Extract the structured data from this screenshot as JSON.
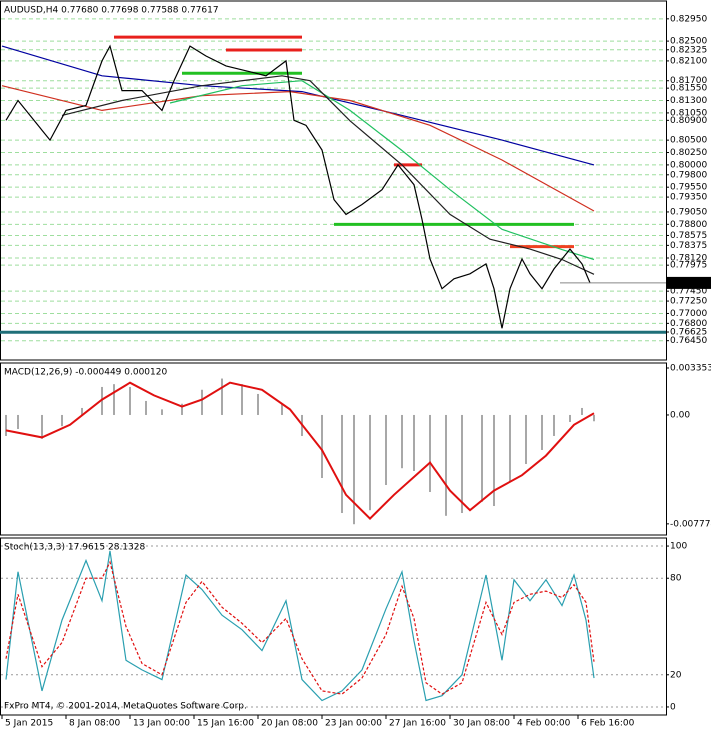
{
  "chart_data": [
    {
      "type": "line",
      "title": "AUDUSD,H4 0.77680 0.77698 0.77588 0.77617",
      "xlim": [
        -0.5,
        166
      ],
      "ylim": [
        0.7606,
        0.8331
      ],
      "yticks": [
        {
          "value": 0.8295,
          "label": "0.82950"
        },
        {
          "value": 0.825,
          "label": "0.82500"
        },
        {
          "value": 0.82325,
          "label": "0.82325"
        },
        {
          "value": 0.821,
          "label": "0.82100"
        },
        {
          "value": 0.817,
          "label": "0.81700"
        },
        {
          "value": 0.8155,
          "label": "0.81550"
        },
        {
          "value": 0.813,
          "label": "0.81300"
        },
        {
          "value": 0.8105,
          "label": "0.81050"
        },
        {
          "value": 0.809,
          "label": "0.80900"
        },
        {
          "value": 0.805,
          "label": "0.80500"
        },
        {
          "value": 0.8025,
          "label": "0.80250"
        },
        {
          "value": 0.8,
          "label": "0.80000"
        },
        {
          "value": 0.798,
          "label": "0.79800"
        },
        {
          "value": 0.7955,
          "label": "0.79550"
        },
        {
          "value": 0.7935,
          "label": "0.79350"
        },
        {
          "value": 0.7905,
          "label": "0.79050"
        },
        {
          "value": 0.788,
          "label": "0.78800"
        },
        {
          "value": 0.78575,
          "label": "0.78575"
        },
        {
          "value": 0.78375,
          "label": "0.78375"
        },
        {
          "value": 0.7812,
          "label": "0.78120"
        },
        {
          "value": 0.77975,
          "label": "0.77975"
        },
        {
          "value": 0.7745,
          "label": "0.77450"
        },
        {
          "value": 0.7725,
          "label": "0.77250"
        },
        {
          "value": 0.77,
          "label": "0.77000"
        },
        {
          "value": 0.768,
          "label": "0.76800"
        },
        {
          "value": 0.76625,
          "label": "0.76625"
        },
        {
          "value": 0.7645,
          "label": "0.76450"
        }
      ],
      "grid": true,
      "current_price": {
        "value": 0.77617,
        "label": "0.77617"
      },
      "levels": [
        {
          "value": 0.8258,
          "color": "#e8201c",
          "from": 28,
          "to": 75
        },
        {
          "value": 0.8232,
          "color": "#e8201c",
          "from": 56,
          "to": 75
        },
        {
          "value": 0.8185,
          "color": "#22c022",
          "from": 45,
          "to": 75
        },
        {
          "value": 0.8,
          "color": "#e8201c",
          "from": 98,
          "to": 105
        },
        {
          "value": 0.7835,
          "color": "#f04020",
          "from": 127,
          "to": 143
        },
        {
          "value": 0.788,
          "color": "#22c022",
          "from": 83,
          "to": 143
        },
        {
          "value": 0.7662,
          "color": "#1f6f78",
          "from": -0.5,
          "to": 166
        }
      ],
      "series": [
        {
          "color": "#0000a0",
          "x": [
            0,
            25,
            50,
            75,
            100,
            125,
            148
          ],
          "values": [
            0.824,
            0.818,
            0.816,
            0.8148,
            0.81,
            0.805,
            0.8
          ]
        },
        {
          "color": "#d03020",
          "x": [
            0,
            25,
            50,
            72,
            87,
            107,
            125,
            148
          ],
          "values": [
            0.816,
            0.811,
            0.814,
            0.8148,
            0.813,
            0.808,
            0.801,
            0.7907
          ]
        },
        {
          "color": "#20c060",
          "x": [
            42,
            60,
            75,
            87,
            100,
            112,
            125,
            140,
            148
          ],
          "values": [
            0.8125,
            0.816,
            0.817,
            0.811,
            0.8029,
            0.795,
            0.787,
            0.7829,
            0.7809
          ]
        },
        {
          "color": "#202020",
          "x": [
            15,
            30,
            50,
            70,
            77,
            87,
            100,
            112,
            122,
            132,
            140,
            148
          ],
          "values": [
            0.81,
            0.813,
            0.816,
            0.818,
            0.817,
            0.8089,
            0.8,
            0.79,
            0.785,
            0.783,
            0.7809,
            0.7779
          ]
        },
        {
          "color": "#000000",
          "x": [
            1,
            4,
            10,
            12,
            16,
            21,
            25,
            27,
            30,
            35,
            40,
            43,
            47,
            51,
            56,
            61,
            66,
            71,
            73,
            76,
            80,
            83,
            86,
            90,
            95,
            99,
            103,
            105,
            107,
            110,
            113,
            117,
            121,
            123,
            125,
            127,
            130,
            132,
            135,
            138,
            142,
            145,
            147
          ],
          "values": [
            0.809,
            0.813,
            0.807,
            0.805,
            0.811,
            0.812,
            0.821,
            0.824,
            0.815,
            0.815,
            0.811,
            0.817,
            0.824,
            0.822,
            0.82,
            0.819,
            0.818,
            0.821,
            0.809,
            0.808,
            0.803,
            0.793,
            0.79,
            0.792,
            0.795,
            0.8,
            0.796,
            0.789,
            0.781,
            0.775,
            0.777,
            0.778,
            0.78,
            0.775,
            0.767,
            0.775,
            0.781,
            0.778,
            0.775,
            0.779,
            0.783,
            0.78,
            0.77617
          ]
        }
      ]
    },
    {
      "type": "line",
      "title": "MACD(12,26,9) -0.000449 0.000120",
      "xlim": [
        -0.5,
        166
      ],
      "ylim": [
        -0.00857,
        0.00371
      ],
      "yticks": [
        0.003353,
        {
          "value": 0,
          "label": "0.00"
        },
        -0.007774
      ],
      "grid": false,
      "series": [
        {
          "color": "#a8a8a8",
          "style": "histogram",
          "x": [
            1,
            4,
            10,
            15,
            20,
            25,
            28,
            32,
            36,
            40,
            45,
            50,
            55,
            60,
            64,
            70,
            75,
            80,
            85,
            88,
            92,
            96,
            100,
            103,
            107,
            111,
            115,
            120,
            123,
            127,
            131,
            135,
            138,
            142,
            145,
            148
          ],
          "values": [
            -0.0015,
            -0.001,
            -0.0017,
            -0.0008,
            0.0005,
            0.002,
            0.0022,
            0.002,
            0.001,
            0.0004,
            0.0008,
            0.0018,
            0.0026,
            0.0022,
            0.0015,
            0.0008,
            -0.0015,
            -0.0045,
            -0.007,
            -0.0078,
            -0.0068,
            -0.005,
            -0.0038,
            -0.004,
            -0.0055,
            -0.0072,
            -0.007,
            -0.0062,
            -0.0065,
            -0.0048,
            -0.0035,
            -0.0025,
            -0.0015,
            -0.0005,
            0.0005,
            -0.000449
          ]
        },
        {
          "color": "#e01010",
          "x": [
            1,
            10,
            17,
            25,
            32,
            38,
            45,
            50,
            57,
            65,
            72,
            80,
            86,
            92,
            98,
            107,
            112,
            117,
            123,
            130,
            136,
            143,
            148
          ],
          "values": [
            -0.0011,
            -0.0016,
            -0.0007,
            0.0011,
            0.0023,
            0.0014,
            0.0006,
            0.0011,
            0.0023,
            0.0018,
            0.0004,
            -0.0025,
            -0.0057,
            -0.0074,
            -0.0057,
            -0.0034,
            -0.0054,
            -0.0068,
            -0.0054,
            -0.0043,
            -0.0029,
            -0.0007,
            0.00012
          ]
        }
      ]
    },
    {
      "type": "line",
      "title": "Stoch(13,3,3) 17.9615 28.1328",
      "annotation": "FxPro MT4, © 2001-2014, MetaQuotes Software Corp.",
      "xlim": [
        -0.5,
        166
      ],
      "ylim": [
        -5,
        105
      ],
      "yticks": [
        100,
        80,
        20,
        0
      ],
      "xticks": [
        {
          "value": 0,
          "label": "5 Jan 2015"
        },
        {
          "value": 16,
          "label": "8 Jan 08:00"
        },
        {
          "value": 32,
          "label": "13 Jan 00:00"
        },
        {
          "value": 48,
          "label": "15 Jan 16:00"
        },
        {
          "value": 64,
          "label": "20 Jan 08:00"
        },
        {
          "value": 80,
          "label": "23 Jan 00:00"
        },
        {
          "value": 96,
          "label": "27 Jan 16:00"
        },
        {
          "value": 112,
          "label": "30 Jan 08:00"
        },
        {
          "value": 128,
          "label": "4 Feb 00:00"
        },
        {
          "value": 144,
          "label": "6 Feb 16:00"
        }
      ],
      "grid": true,
      "series": [
        {
          "color": "#2a9fb0",
          "x": [
            1,
            4,
            10,
            15,
            21,
            25,
            27,
            31,
            35,
            40,
            46,
            50,
            55,
            60,
            65,
            71,
            75,
            80,
            85,
            90,
            96,
            100,
            103,
            106,
            110,
            115,
            121,
            125,
            128,
            132,
            136,
            140,
            143,
            146,
            148
          ],
          "values": [
            17,
            84,
            10,
            54,
            91,
            66,
            97,
            29,
            23,
            17,
            82,
            73,
            57,
            48,
            35,
            66,
            17,
            4,
            10,
            23,
            61,
            84,
            41,
            4,
            7,
            20,
            82,
            29,
            79,
            66,
            79,
            63,
            82,
            54,
            17.9615
          ]
        },
        {
          "color": "#e01010",
          "style": "dashed",
          "x": [
            1,
            4,
            10,
            15,
            21,
            25,
            27,
            31,
            35,
            40,
            46,
            50,
            55,
            60,
            65,
            71,
            75,
            80,
            85,
            90,
            96,
            100,
            103,
            106,
            110,
            115,
            121,
            125,
            128,
            132,
            136,
            140,
            143,
            146,
            148
          ],
          "values": [
            30,
            70,
            25,
            40,
            80,
            80,
            90,
            50,
            27,
            20,
            65,
            78,
            62,
            52,
            40,
            55,
            30,
            10,
            8,
            18,
            45,
            75,
            55,
            15,
            8,
            15,
            65,
            45,
            65,
            70,
            72,
            68,
            76,
            65,
            28.1328
          ]
        }
      ]
    }
  ]
}
